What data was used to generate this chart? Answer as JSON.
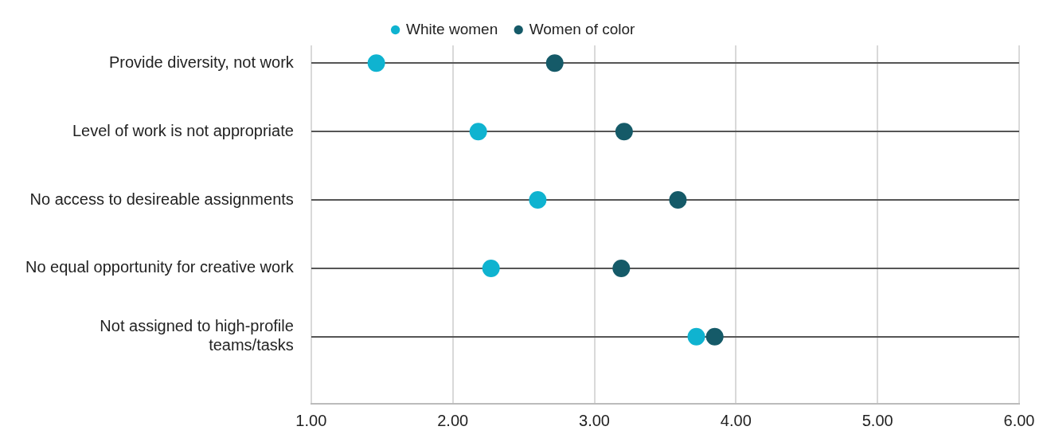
{
  "chart_data": {
    "type": "scatter",
    "categories": [
      "Provide diversity, not work",
      "Level of work is not appropriate",
      "No access to desireable assignments",
      "No equal opportunity for creative work",
      "Not assigned to high-profile teams/tasks"
    ],
    "orientation": "horizontal",
    "series": [
      {
        "name": "White women",
        "color": "#0fb3d0",
        "values": [
          1.46,
          2.18,
          2.6,
          2.27,
          3.72
        ]
      },
      {
        "name": "Women of color",
        "color": "#155a68",
        "values": [
          2.72,
          3.21,
          3.59,
          3.19,
          3.85
        ]
      }
    ],
    "xlim": [
      1,
      6
    ],
    "xticks": [
      {
        "value": 1,
        "label": "1.00"
      },
      {
        "value": 2,
        "label": "2.00"
      },
      {
        "value": 3,
        "label": "3.00"
      },
      {
        "value": 4,
        "label": "4.00"
      },
      {
        "value": 5,
        "label": "5.00"
      },
      {
        "value": 6,
        "label": "6.00"
      }
    ],
    "grid": true,
    "legend": "top",
    "marker": "circle"
  }
}
